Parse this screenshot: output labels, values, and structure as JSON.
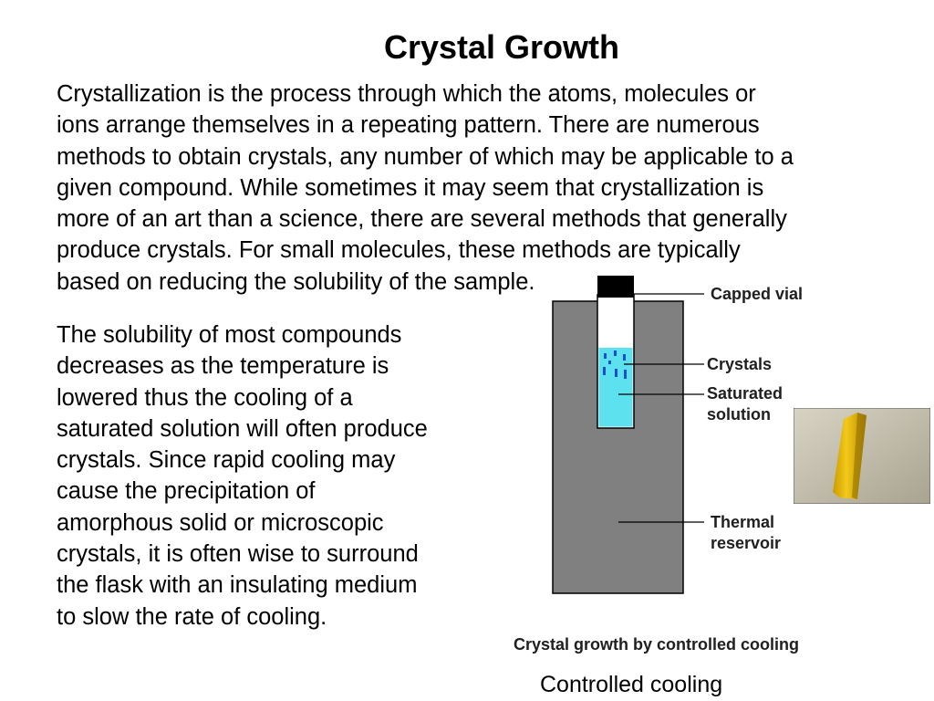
{
  "slide": {
    "title": "Crystal Growth",
    "intro_lines": [
      "Crystallization is the process through which the atoms, molecules or",
      "ions arrange themselves in a repeating pattern.  There are numerous",
      "methods to obtain crystals, any number of which may be applicable to a",
      "given compound.  While sometimes it may seem that crystallization is",
      "more of an art than a science, there are several methods that generally",
      "produce crystals.  For small molecules, these methods are typically",
      "based on reducing the solubility of the sample."
    ],
    "side_lines": [
      "The solubility of most compounds",
      "decreases as the temperature is",
      "lowered thus the cooling of a",
      "saturated solution will often produce",
      "crystals.  Since rapid cooling may",
      "cause the precipitation of",
      "amorphous solid or microscopic",
      "crystals, it is often wise to surround",
      "the flask with an insulating medium",
      "to slow the rate of cooling."
    ],
    "caption": "Controlled cooling"
  },
  "diagram": {
    "labels": {
      "capped_vial": "Capped vial",
      "crystals": "Crystals",
      "saturated_1": "Saturated",
      "saturated_2": "solution",
      "thermal_1": "Thermal",
      "thermal_2": "reservoir"
    },
    "caption": "Crystal growth by controlled cooling",
    "colors": {
      "reservoir": "#808080",
      "solution": "#5ee1ee",
      "crystals": "#1a4fd0",
      "cap": "#000000"
    }
  }
}
